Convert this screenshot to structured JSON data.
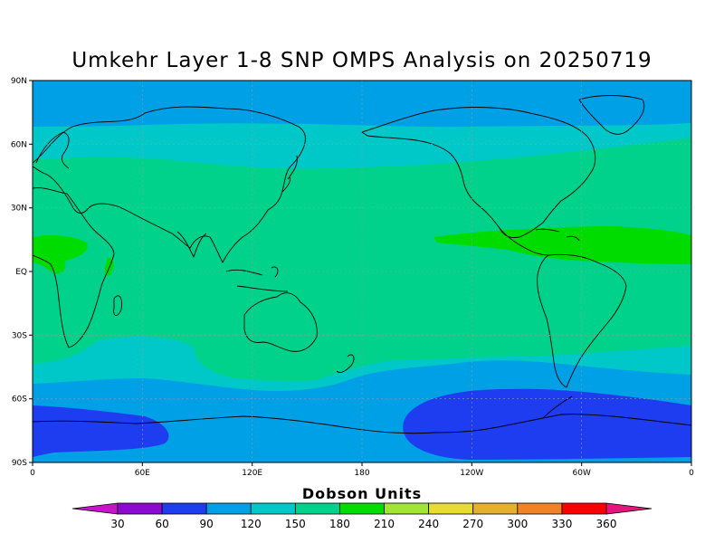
{
  "title": "Umkehr Layer 1-8 SNP OMPS Analysis on 20250719",
  "y_axis_labels": [
    "90N",
    "60N",
    "30N",
    "EQ",
    "30S",
    "60S",
    "90S"
  ],
  "x_axis_labels": [
    "0",
    "60E",
    "120E",
    "180",
    "120W",
    "60W",
    "0"
  ],
  "colorbar": {
    "title": "Dobson Units",
    "tick_labels": [
      "30",
      "60",
      "90",
      "120",
      "150",
      "180",
      "210",
      "240",
      "270",
      "300",
      "330",
      "360"
    ],
    "colors": [
      "#c814c8",
      "#8c0ad2",
      "#1e3cf0",
      "#00a0e6",
      "#00c8c8",
      "#00d28c",
      "#00dc00",
      "#a0e632",
      "#e6dc32",
      "#e6af2d",
      "#f08228",
      "#fa0000",
      "#e6147d"
    ]
  },
  "map": {
    "projection": "cylindrical equidistant",
    "lon_range": [
      0,
      360
    ],
    "lat_range": [
      -90,
      90
    ],
    "grid": true,
    "coastlines": true
  }
}
